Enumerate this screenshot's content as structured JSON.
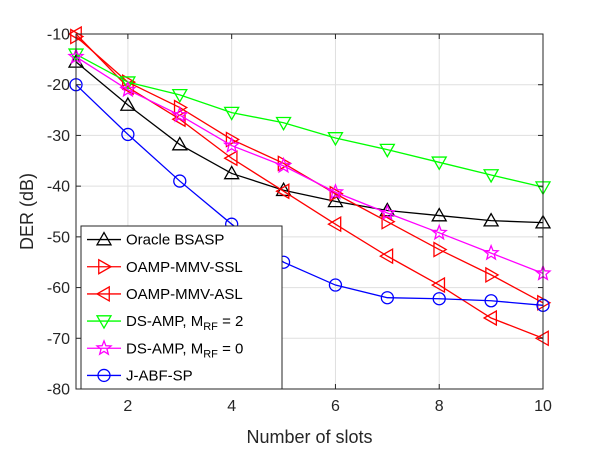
{
  "chart_data": {
    "type": "line",
    "title": "",
    "xlabel": "Number of slots",
    "ylabel": "DER (dB)",
    "xlim": [
      1,
      10
    ],
    "ylim": [
      -80,
      -10
    ],
    "xticks": [
      2,
      4,
      6,
      8,
      10
    ],
    "xtick_labels": [
      "2",
      "4",
      "6",
      "8",
      "10"
    ],
    "yticks": [
      -80,
      -70,
      -60,
      -50,
      -40,
      -30,
      -20,
      -10
    ],
    "ytick_labels": [
      "-80",
      "-70",
      "-60",
      "-50",
      "-40",
      "-30",
      "-20",
      "-10"
    ],
    "grid": true,
    "legend_position": "bottom-left",
    "x": [
      1,
      2,
      3,
      4,
      5,
      6,
      7,
      8,
      9,
      10
    ],
    "series": [
      {
        "name": "Oracle BSASP",
        "legend_main": "Oracle BSASP",
        "legend_sub": "",
        "legend_tail": "",
        "color": "#000000",
        "marker": "triangle-up",
        "values": [
          -15.5,
          -24.0,
          -31.8,
          -37.5,
          -40.8,
          -43.0,
          -44.8,
          -45.8,
          -46.8,
          -47.2
        ]
      },
      {
        "name": "OAMP-MMV-SSL",
        "legend_main": "OAMP-MMV-SSL",
        "legend_sub": "",
        "legend_tail": "",
        "color": "#ff0000",
        "marker": "triangle-right",
        "values": [
          -10.5,
          -19.5,
          -24.5,
          -30.8,
          -35.5,
          -41.5,
          -47.0,
          -52.5,
          -57.5,
          -63.0
        ]
      },
      {
        "name": "OAMP-MMV-ASL",
        "legend_main": "OAMP-MMV-ASL",
        "legend_sub": "",
        "legend_tail": "",
        "color": "#ff0000",
        "marker": "triangle-left",
        "values": [
          -10.0,
          -20.5,
          -26.8,
          -34.5,
          -41.0,
          -47.5,
          -53.8,
          -59.5,
          -66.0,
          -70.0
        ]
      },
      {
        "name": "DS-AMP, M_RF = 2",
        "legend_main": "DS-AMP, M",
        "legend_sub": "RF",
        "legend_tail": " = 2",
        "color": "#00ff00",
        "marker": "triangle-down",
        "values": [
          -14.0,
          -19.5,
          -22.0,
          -25.5,
          -27.5,
          -30.5,
          -32.8,
          -35.3,
          -37.8,
          -40.2
        ]
      },
      {
        "name": "DS-AMP, M_RF = 0",
        "legend_main": "DS-AMP, M",
        "legend_sub": "RF",
        "legend_tail": " = 0",
        "color": "#ff00ff",
        "marker": "star",
        "values": [
          -14.5,
          -21.0,
          -26.0,
          -32.0,
          -36.0,
          -41.2,
          -45.3,
          -49.2,
          -53.2,
          -57.2
        ]
      },
      {
        "name": "J-ABF-SP",
        "legend_main": "J-ABF-SP",
        "legend_sub": "",
        "legend_tail": "",
        "color": "#0000ff",
        "marker": "circle",
        "values": [
          -20.0,
          -29.8,
          -39.0,
          -47.5,
          -55.0,
          -59.5,
          -62.0,
          -62.2,
          -62.6,
          -63.5
        ]
      }
    ]
  }
}
